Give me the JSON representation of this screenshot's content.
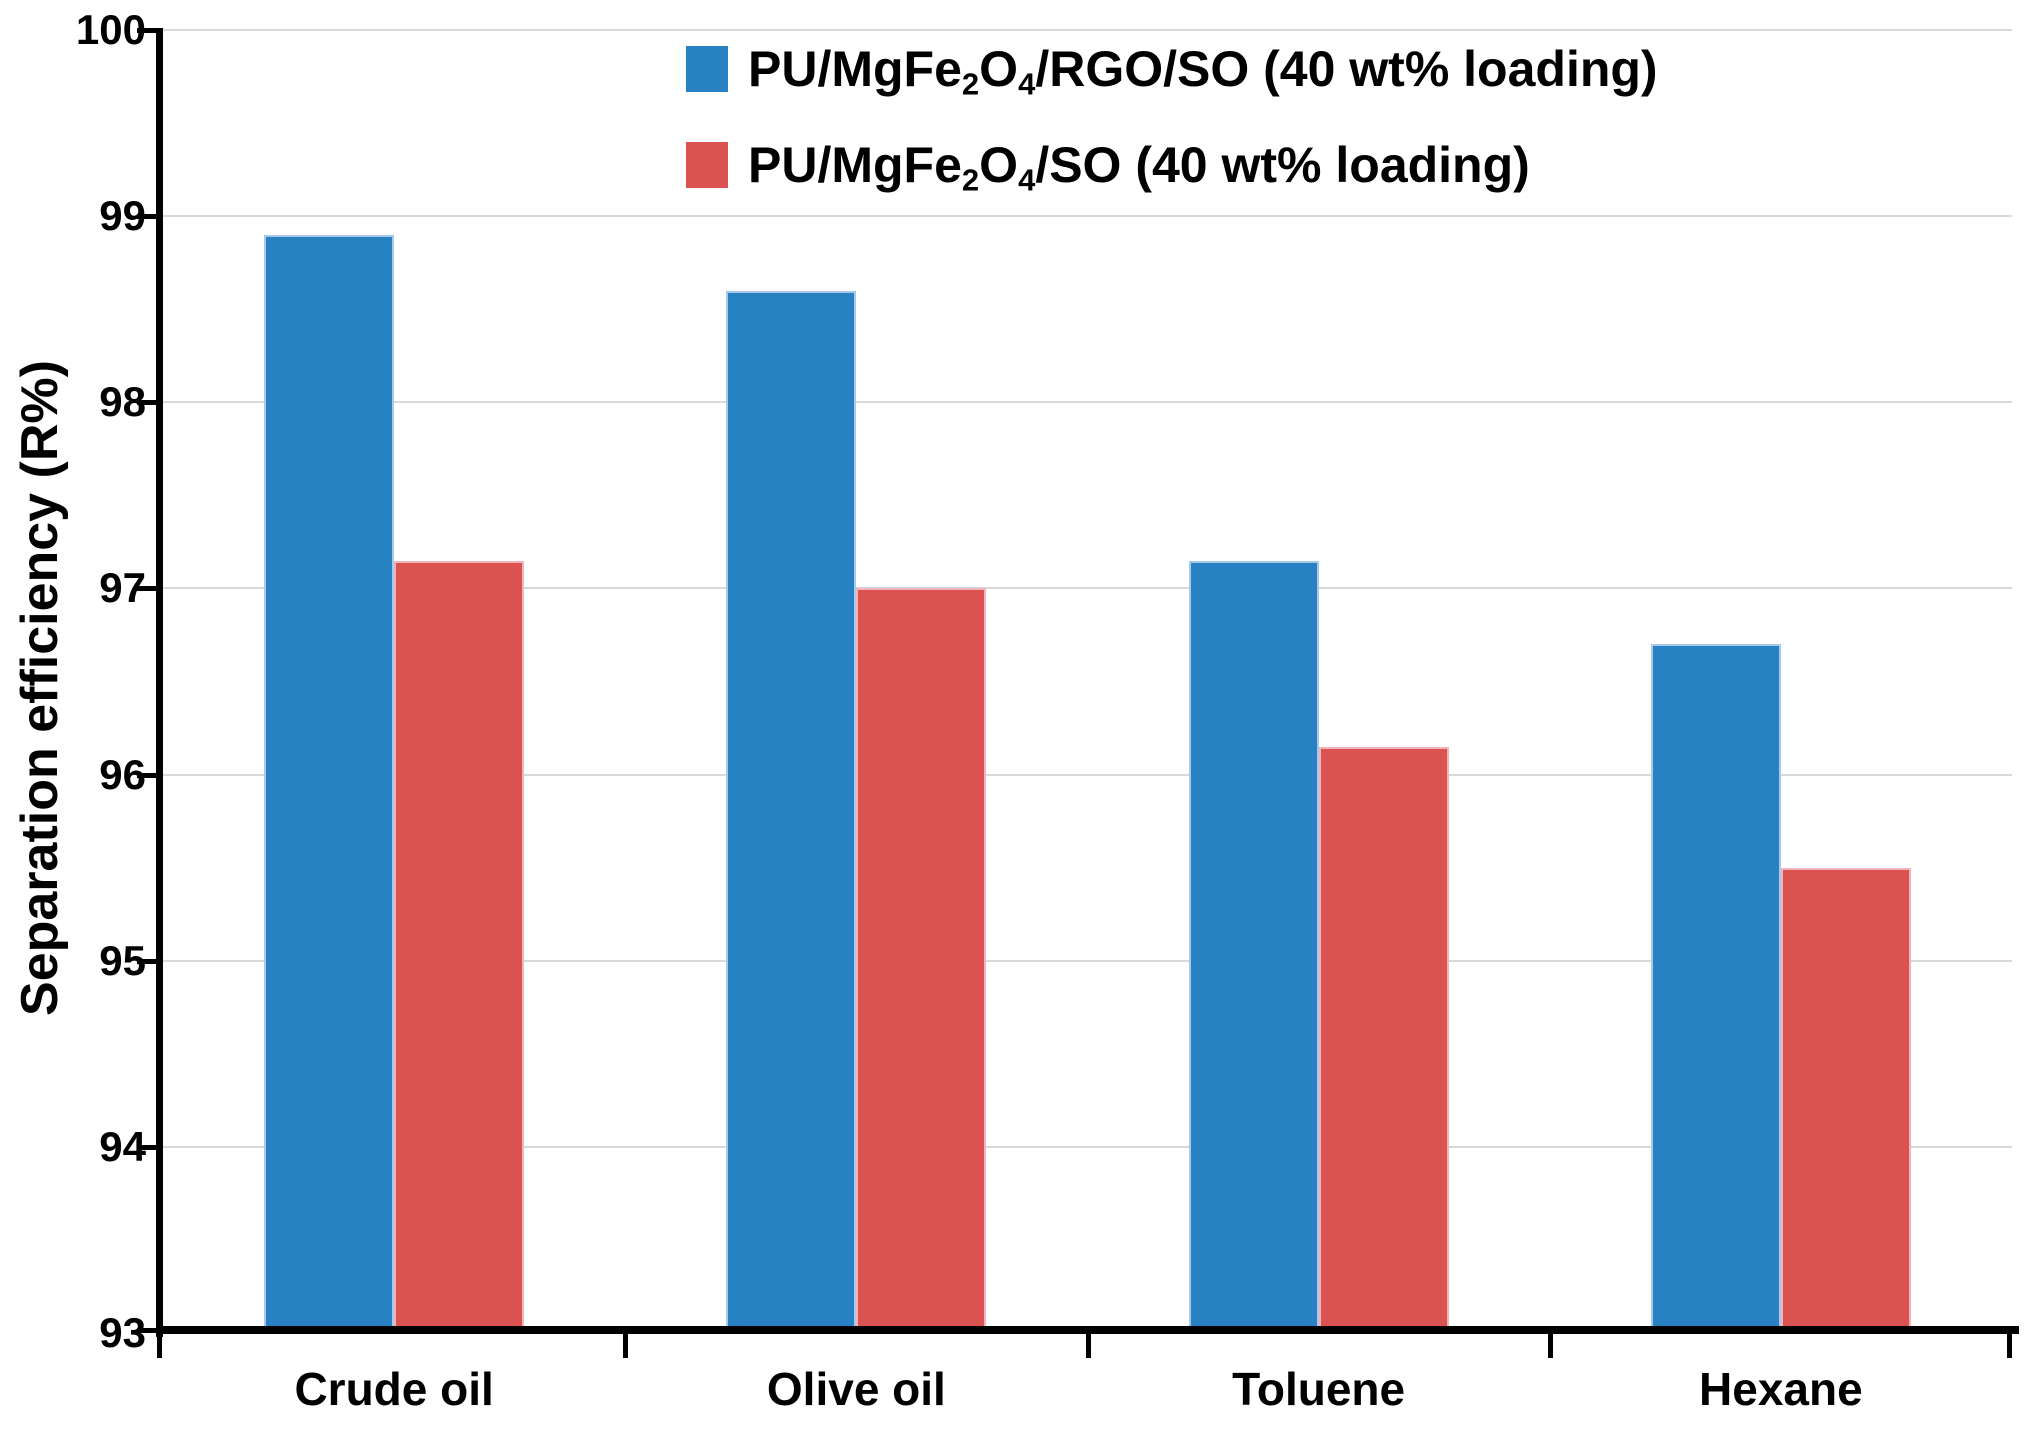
{
  "chart_data": {
    "type": "bar",
    "categories": [
      "Crude oil",
      "Olive oil",
      "Toluene",
      "Hexane"
    ],
    "series": [
      {
        "name": "PU/MgFe₂O₄/RGO/SO (40 wt% loading)",
        "color": "#2781c3",
        "edge_color": "#a9c9e9",
        "values": [
          98.9,
          98.6,
          97.15,
          96.7
        ]
      },
      {
        "name": "PU/MgFe₂O₄/SO (40 wt% loading)",
        "color": "#db5351",
        "edge_color": "#f0b4ba",
        "values": [
          97.15,
          97.0,
          96.15,
          95.5
        ]
      }
    ],
    "title": "",
    "xlabel": "",
    "ylabel": "Separation efficiency (R%)",
    "ylim": [
      93,
      100
    ],
    "yticks": [
      93,
      94,
      95,
      96,
      97,
      98,
      99,
      100
    ],
    "grid": "horizontal",
    "gridline_color": "#d9d9d9",
    "axis_color": "#000000",
    "legend_position": "top-center"
  },
  "legend": {
    "items": [
      {
        "parts": {
          "p0": "PU/MgFe",
          "s1": "2",
          "p1": "O",
          "s2": "4",
          "p2": "/RGO/SO (40 wt% loading)"
        }
      },
      {
        "parts": {
          "p0": "PU/MgFe",
          "s1": "2",
          "p1": "O",
          "s2": "4",
          "p2": "/SO (40 wt% loading)"
        }
      }
    ]
  }
}
